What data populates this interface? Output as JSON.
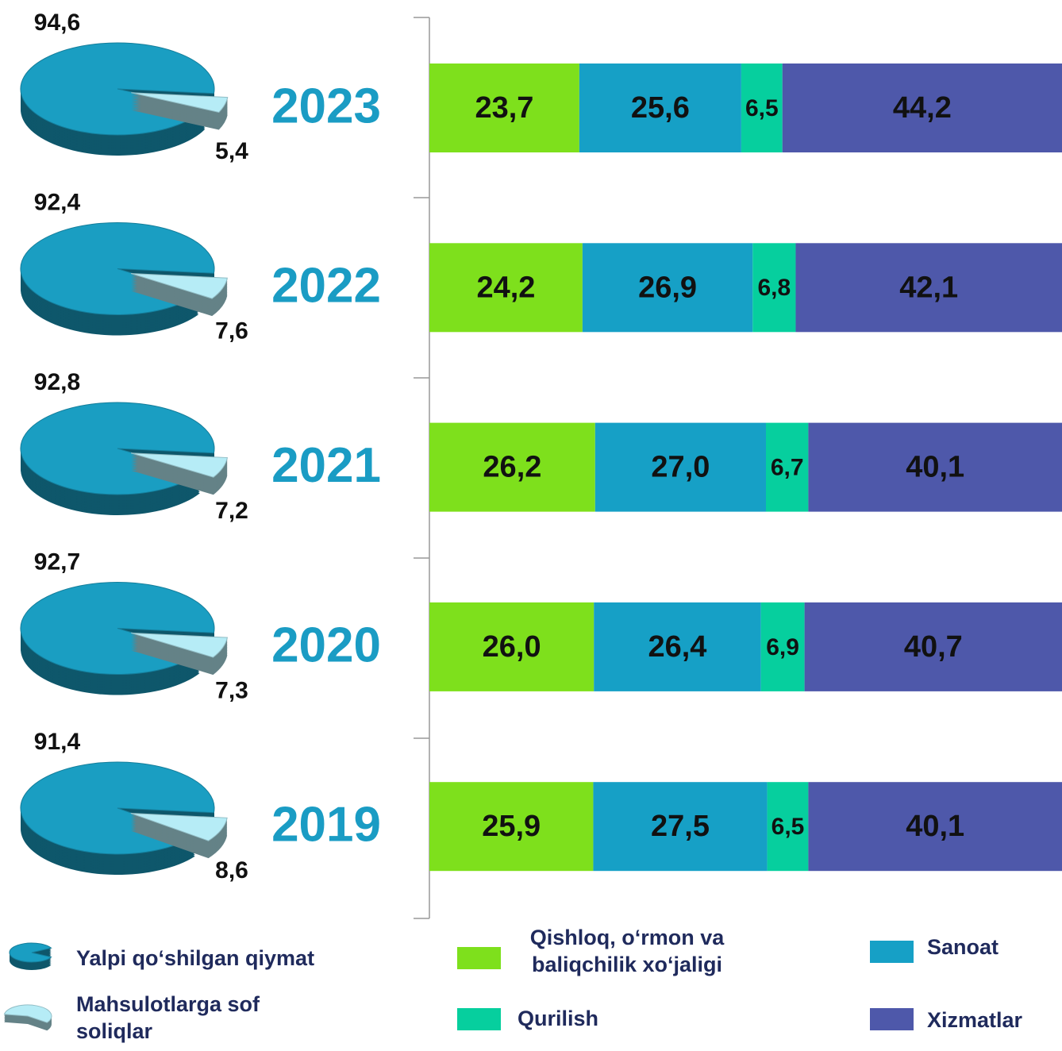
{
  "chart_data": [
    {
      "type": "stacked-bar-horizontal",
      "categories": [
        "2023",
        "2022",
        "2021",
        "2020",
        "2019"
      ],
      "xlim": [
        0,
        100
      ],
      "series": [
        {
          "name": "Qishloq, o‘rmon va baliqchilik xo‘jaligi",
          "color": "#7ee01c",
          "values": [
            23.7,
            24.2,
            26.2,
            26.0,
            25.9
          ],
          "value_labels": [
            "23,7",
            "24,2",
            "26,2",
            "26,0",
            "25,9"
          ]
        },
        {
          "name": "Sanoat",
          "color": "#16a0c6",
          "values": [
            25.6,
            26.9,
            27.0,
            26.4,
            27.5
          ],
          "value_labels": [
            "25,6",
            "26,9",
            "27,0",
            "26,4",
            "27,5"
          ]
        },
        {
          "name": "Qurilish",
          "color": "#06cf9e",
          "values": [
            6.5,
            6.8,
            6.7,
            6.9,
            6.5
          ],
          "value_labels": [
            "6,5",
            "6,8",
            "6,7",
            "6,9",
            "6,5"
          ]
        },
        {
          "name": "Xizmatlar",
          "color": "#4e58aa",
          "values": [
            44.2,
            42.1,
            40.1,
            40.7,
            40.1
          ],
          "value_labels": [
            "44,2",
            "42,1",
            "40,1",
            "40,7",
            "40,1"
          ]
        }
      ]
    },
    {
      "type": "pie",
      "categories": [
        "Yalpi qo‘shilgan qiymat",
        "Mahsulotlarga sof soliqlar"
      ],
      "colors": [
        "#1a9ec2",
        "#b6ecf6"
      ],
      "pies": [
        {
          "values": [
            94.6,
            5.4
          ],
          "value_labels": [
            "94,6",
            "5,4"
          ]
        },
        {
          "values": [
            92.4,
            7.6
          ],
          "value_labels": [
            "92,4",
            "7,6"
          ]
        },
        {
          "values": [
            92.8,
            7.2
          ],
          "value_labels": [
            "92,8",
            "7,2"
          ]
        },
        {
          "values": [
            92.7,
            7.3
          ],
          "value_labels": [
            "92,7",
            "7,3"
          ]
        },
        {
          "values": [
            91.4,
            8.6
          ],
          "value_labels": [
            "91,4",
            "8,6"
          ]
        }
      ]
    }
  ]
}
